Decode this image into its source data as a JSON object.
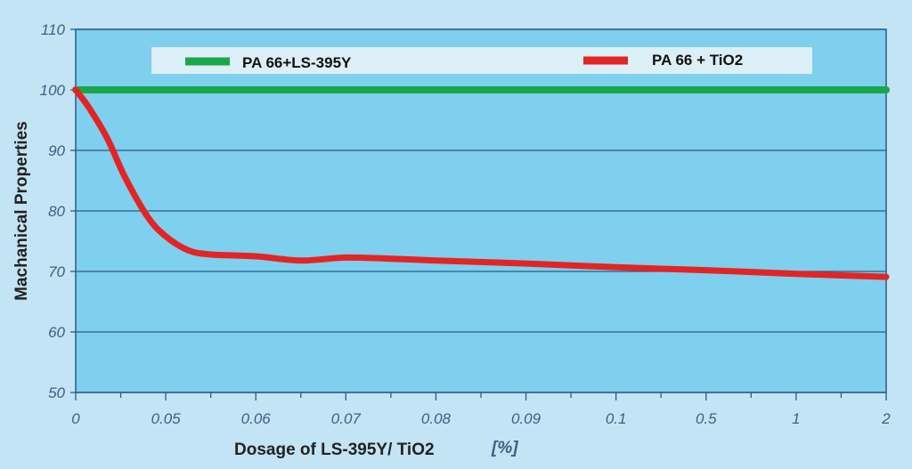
{
  "chart_data": {
    "type": "line",
    "ylabel": "Machanical Properties",
    "xlabel": "Dosage of LS-395Y/ TiO2",
    "xlabel_unit": "[%]",
    "categories": [
      "0",
      "0.05",
      "0.06",
      "0.07",
      "0.08",
      "0.09",
      "0.1",
      "0.5",
      "1",
      "2"
    ],
    "yticks": [
      "50",
      "60",
      "70",
      "80",
      "90",
      "100",
      "110"
    ],
    "ylim": [
      50,
      110
    ],
    "grid": "horizontal",
    "legend_position": "top",
    "series": [
      {
        "name": "PA 66+LS-395Y",
        "color": "#1aa64a",
        "x": [
          0,
          9
        ],
        "values": [
          100,
          100
        ]
      },
      {
        "name": "PA 66 + TiO2",
        "color": "#e32424",
        "x": [
          0,
          0.15,
          0.35,
          0.55,
          0.8,
          1.0,
          1.25,
          1.5,
          2.0,
          2.5,
          3.0,
          3.5,
          4.0,
          5.0,
          6.0,
          7.0,
          8.0,
          9.0
        ],
        "values": [
          100,
          97,
          92,
          85.5,
          79,
          75.8,
          73.5,
          72.8,
          72.5,
          71.8,
          72.3,
          72.1,
          71.8,
          71.3,
          70.7,
          70.2,
          69.6,
          69.1
        ]
      }
    ]
  },
  "colors": {
    "plot_background": "#7fcfee",
    "page_background": "#c3e4f4",
    "grid": "#2b5a86"
  }
}
